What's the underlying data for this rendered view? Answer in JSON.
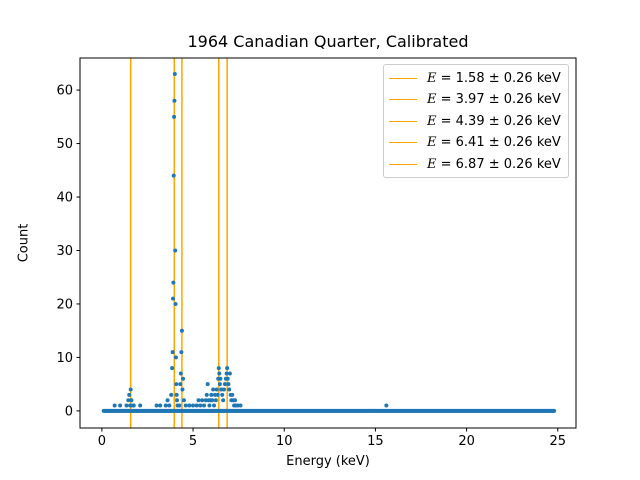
{
  "chart_data": {
    "type": "scatter",
    "title": "1964 Canadian Quarter, Calibrated",
    "xlabel": "Energy (keV)",
    "ylabel": "Count",
    "xlim": [
      -1.2,
      26.0
    ],
    "ylim": [
      -3.2,
      66.0
    ],
    "xticks": [
      0,
      5,
      10,
      15,
      20,
      25
    ],
    "yticks": [
      0,
      10,
      20,
      30,
      40,
      50,
      60
    ],
    "grid": false,
    "legend_position": "top-right",
    "marker_color": "#1f77b4",
    "line_color": "#ffa500",
    "vlines": [
      {
        "x": 1.58,
        "label_var": "E",
        "label_text": " = 1.58 ± 0.26 keV"
      },
      {
        "x": 3.97,
        "label_var": "E",
        "label_text": " = 3.97 ± 0.26 keV"
      },
      {
        "x": 4.39,
        "label_var": "E",
        "label_text": " = 4.39 ± 0.26 keV"
      },
      {
        "x": 6.41,
        "label_var": "E",
        "label_text": " = 6.41 ± 0.26 keV"
      },
      {
        "x": 6.87,
        "label_var": "E",
        "label_text": " = 6.87 ± 0.26 keV"
      }
    ],
    "baseline": {
      "x_start": 0.1,
      "x_end": 24.8,
      "step": 0.05,
      "y": 0
    },
    "points": [
      [
        0.7,
        1
      ],
      [
        1.0,
        1
      ],
      [
        1.35,
        1
      ],
      [
        1.45,
        2
      ],
      [
        1.5,
        3
      ],
      [
        1.55,
        1
      ],
      [
        1.58,
        4
      ],
      [
        1.62,
        2
      ],
      [
        1.68,
        1
      ],
      [
        1.75,
        1
      ],
      [
        2.1,
        1
      ],
      [
        3.0,
        1
      ],
      [
        3.2,
        1
      ],
      [
        3.5,
        1
      ],
      [
        3.6,
        2
      ],
      [
        3.7,
        1
      ],
      [
        3.8,
        3
      ],
      [
        3.85,
        8
      ],
      [
        3.88,
        11
      ],
      [
        3.9,
        21
      ],
      [
        3.92,
        24
      ],
      [
        3.94,
        44
      ],
      [
        3.96,
        55
      ],
      [
        3.98,
        58
      ],
      [
        4.0,
        63
      ],
      [
        4.02,
        30
      ],
      [
        4.04,
        20
      ],
      [
        4.06,
        10
      ],
      [
        4.08,
        5
      ],
      [
        4.1,
        3
      ],
      [
        4.12,
        2
      ],
      [
        4.15,
        1
      ],
      [
        4.25,
        1
      ],
      [
        4.3,
        5
      ],
      [
        4.33,
        7
      ],
      [
        4.36,
        11
      ],
      [
        4.39,
        15
      ],
      [
        4.42,
        4
      ],
      [
        4.45,
        6
      ],
      [
        4.5,
        2
      ],
      [
        4.6,
        1
      ],
      [
        4.8,
        1
      ],
      [
        5.0,
        1
      ],
      [
        5.2,
        1
      ],
      [
        5.3,
        2
      ],
      [
        5.4,
        1
      ],
      [
        5.5,
        2
      ],
      [
        5.6,
        1
      ],
      [
        5.7,
        2
      ],
      [
        5.75,
        3
      ],
      [
        5.8,
        5
      ],
      [
        5.85,
        2
      ],
      [
        5.9,
        1
      ],
      [
        5.95,
        2
      ],
      [
        6.0,
        3
      ],
      [
        6.05,
        2
      ],
      [
        6.1,
        4
      ],
      [
        6.15,
        1
      ],
      [
        6.2,
        3
      ],
      [
        6.25,
        2
      ],
      [
        6.3,
        4
      ],
      [
        6.35,
        3
      ],
      [
        6.38,
        6
      ],
      [
        6.41,
        8
      ],
      [
        6.44,
        7
      ],
      [
        6.47,
        5
      ],
      [
        6.5,
        6
      ],
      [
        6.55,
        4
      ],
      [
        6.6,
        3
      ],
      [
        6.65,
        2
      ],
      [
        6.7,
        4
      ],
      [
        6.75,
        5
      ],
      [
        6.8,
        6
      ],
      [
        6.84,
        7
      ],
      [
        6.87,
        8
      ],
      [
        6.9,
        6
      ],
      [
        6.94,
        5
      ],
      [
        6.98,
        4
      ],
      [
        7.02,
        7
      ],
      [
        7.06,
        3
      ],
      [
        7.1,
        2
      ],
      [
        7.15,
        3
      ],
      [
        7.2,
        2
      ],
      [
        7.25,
        1
      ],
      [
        7.3,
        2
      ],
      [
        7.35,
        1
      ],
      [
        7.45,
        1
      ],
      [
        7.6,
        1
      ],
      [
        15.6,
        1
      ]
    ]
  }
}
